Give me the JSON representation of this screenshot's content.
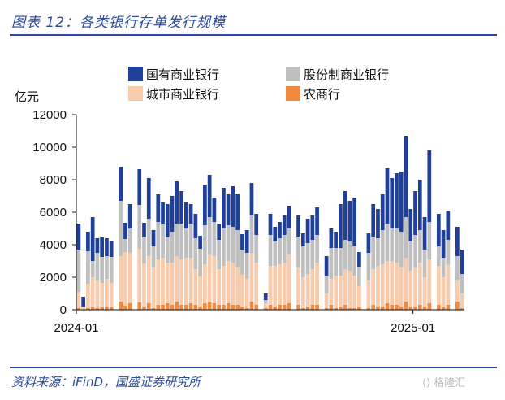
{
  "figure_title": "图表 12：各类银行存单发行规模",
  "source_note": "资料来源：iFinD，国盛证券研究所",
  "watermark": "格隆汇",
  "chart_data": {
    "type": "bar",
    "stacked": true,
    "unit_label": "亿元",
    "ylim": [
      0,
      12000
    ],
    "yticks": [
      0,
      2000,
      4000,
      6000,
      8000,
      10000,
      12000
    ],
    "ytick_labels": [
      "0",
      "2000",
      "4000",
      "6000",
      "8000",
      "10000",
      "12000"
    ],
    "x_tick_labels": [
      {
        "label": "2024-01",
        "bar_index": 0
      },
      {
        "label": "2025-01",
        "bar_index": 72
      }
    ],
    "legend_placement": "top",
    "colors": {
      "国有商业银行": "#1f3f99",
      "股份制商业银行": "#bfbfbf",
      "城市商业银行": "#f8cbad",
      "农商行": "#f0883d"
    },
    "series": [
      {
        "name": "国有商业银行",
        "values": [
          1600,
          600,
          1200,
          2700,
          900,
          1200,
          1100,
          1000,
          0,
          2100,
          1000,
          1500,
          0,
          2200,
          900,
          2500,
          1000,
          1700,
          1300,
          2000,
          2200,
          2600,
          2000,
          1600,
          1200,
          1500,
          800,
          2500,
          2600,
          1500,
          1000,
          2500,
          1900,
          2500,
          2200,
          1000,
          1400,
          2000,
          1300,
          0,
          400,
          1300,
          900,
          1000,
          1200,
          1400,
          0,
          1300,
          800,
          1500,
          1500,
          1700,
          0,
          1200,
          1200,
          1000,
          2700,
          3000,
          2500,
          3000,
          900,
          0,
          1200,
          2000,
          1800,
          2200,
          3400,
          3100,
          3400,
          3700,
          5000,
          2000,
          2700,
          3100,
          2000,
          4400,
          0,
          2000,
          1700,
          1800,
          0,
          1800,
          1500
        ]
      },
      {
        "name": "股份制商业银行",
        "values": [
          2600,
          0,
          2000,
          1000,
          1700,
          1600,
          1400,
          1600,
          0,
          3400,
          800,
          1500,
          0,
          2700,
          1600,
          2300,
          1300,
          2300,
          2100,
          1600,
          1900,
          2000,
          2200,
          1800,
          2100,
          1900,
          1700,
          2400,
          2300,
          2100,
          1800,
          2300,
          2200,
          2200,
          2300,
          1500,
          1600,
          2300,
          1700,
          0,
          200,
          1900,
          1500,
          1600,
          1700,
          1600,
          0,
          1900,
          1900,
          1900,
          1800,
          1700,
          0,
          1100,
          1900,
          1700,
          1700,
          1800,
          1800,
          1800,
          1200,
          0,
          1700,
          2000,
          1700,
          2100,
          2300,
          2000,
          2100,
          2200,
          2500,
          1800,
          2000,
          2000,
          1700,
          2300,
          0,
          1200,
          1200,
          1500,
          0,
          1500,
          1200
        ]
      },
      {
        "name": "城市商业银行",
        "values": [
          1000,
          200,
          1500,
          1800,
          1700,
          1500,
          1700,
          1500,
          0,
          2800,
          3300,
          3100,
          0,
          3300,
          2700,
          2900,
          2500,
          2800,
          2900,
          2500,
          2600,
          2800,
          2800,
          2900,
          2800,
          2200,
          1900,
          2400,
          2900,
          2900,
          2200,
          2400,
          2600,
          2600,
          2300,
          2000,
          1800,
          3000,
          2600,
          0,
          300,
          2400,
          2500,
          2500,
          2600,
          3000,
          0,
          2300,
          1900,
          2000,
          2200,
          2600,
          0,
          900,
          1600,
          2000,
          1900,
          2200,
          2300,
          2000,
          1300,
          0,
          1700,
          2200,
          2500,
          2600,
          2600,
          2700,
          2600,
          2400,
          2700,
          2200,
          2400,
          2600,
          1800,
          2700,
          0,
          2400,
          1800,
          2500,
          0,
          1300,
          900
        ]
      },
      {
        "name": "农商行",
        "values": [
          100,
          0,
          100,
          200,
          100,
          150,
          200,
          150,
          0,
          500,
          250,
          400,
          0,
          450,
          150,
          400,
          100,
          300,
          300,
          400,
          300,
          500,
          300,
          300,
          400,
          300,
          150,
          400,
          500,
          400,
          300,
          300,
          400,
          300,
          300,
          150,
          100,
          500,
          300,
          0,
          100,
          300,
          200,
          300,
          300,
          400,
          0,
          300,
          100,
          200,
          300,
          300,
          0,
          100,
          300,
          100,
          200,
          300,
          100,
          100,
          150,
          0,
          100,
          300,
          200,
          200,
          400,
          300,
          300,
          200,
          500,
          200,
          200,
          300,
          200,
          400,
          0,
          300,
          200,
          300,
          0,
          500,
          100
        ]
      }
    ]
  }
}
